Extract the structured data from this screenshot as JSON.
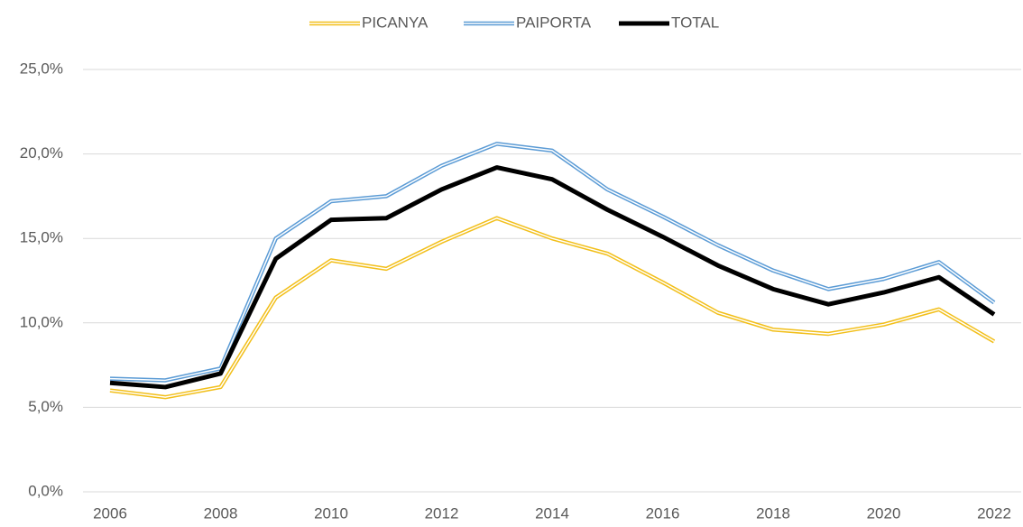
{
  "chart_data": {
    "type": "line",
    "x": [
      2006,
      2007,
      2008,
      2009,
      2010,
      2011,
      2012,
      2013,
      2014,
      2015,
      2016,
      2017,
      2018,
      2019,
      2020,
      2021,
      2022
    ],
    "series": [
      {
        "name": "PICANYA",
        "color": "#f2bf1a",
        "style": "double",
        "values": [
          6.0,
          5.6,
          6.2,
          11.5,
          13.7,
          13.2,
          14.8,
          16.2,
          15.0,
          14.1,
          12.4,
          10.6,
          9.6,
          9.35,
          9.9,
          10.8,
          8.9
        ]
      },
      {
        "name": "PAIPORTA",
        "color": "#5b9bd5",
        "style": "double",
        "values": [
          6.7,
          6.6,
          7.3,
          15.0,
          17.2,
          17.5,
          19.3,
          20.6,
          20.2,
          17.9,
          16.3,
          14.6,
          13.1,
          12.0,
          12.6,
          13.6,
          11.2
        ]
      },
      {
        "name": "TOTAL",
        "color": "#000000",
        "style": "solid",
        "values": [
          6.45,
          6.2,
          7.0,
          13.8,
          16.1,
          16.2,
          17.9,
          19.2,
          18.5,
          16.7,
          15.1,
          13.4,
          12.0,
          11.1,
          11.8,
          12.7,
          10.5
        ]
      }
    ],
    "xlim": [
      2006,
      2022
    ],
    "xticks": [
      2006,
      2008,
      2010,
      2012,
      2014,
      2016,
      2018,
      2020,
      2022
    ],
    "ylim": [
      0,
      25
    ],
    "yticks": [
      {
        "value": 0,
        "label": "0,0%"
      },
      {
        "value": 5,
        "label": "5,0%"
      },
      {
        "value": 10,
        "label": "10,0%"
      },
      {
        "value": 15,
        "label": "15,0%"
      },
      {
        "value": 20,
        "label": "20,0%"
      },
      {
        "value": 25,
        "label": "25,0%"
      }
    ],
    "grid": true,
    "legend": "top"
  }
}
